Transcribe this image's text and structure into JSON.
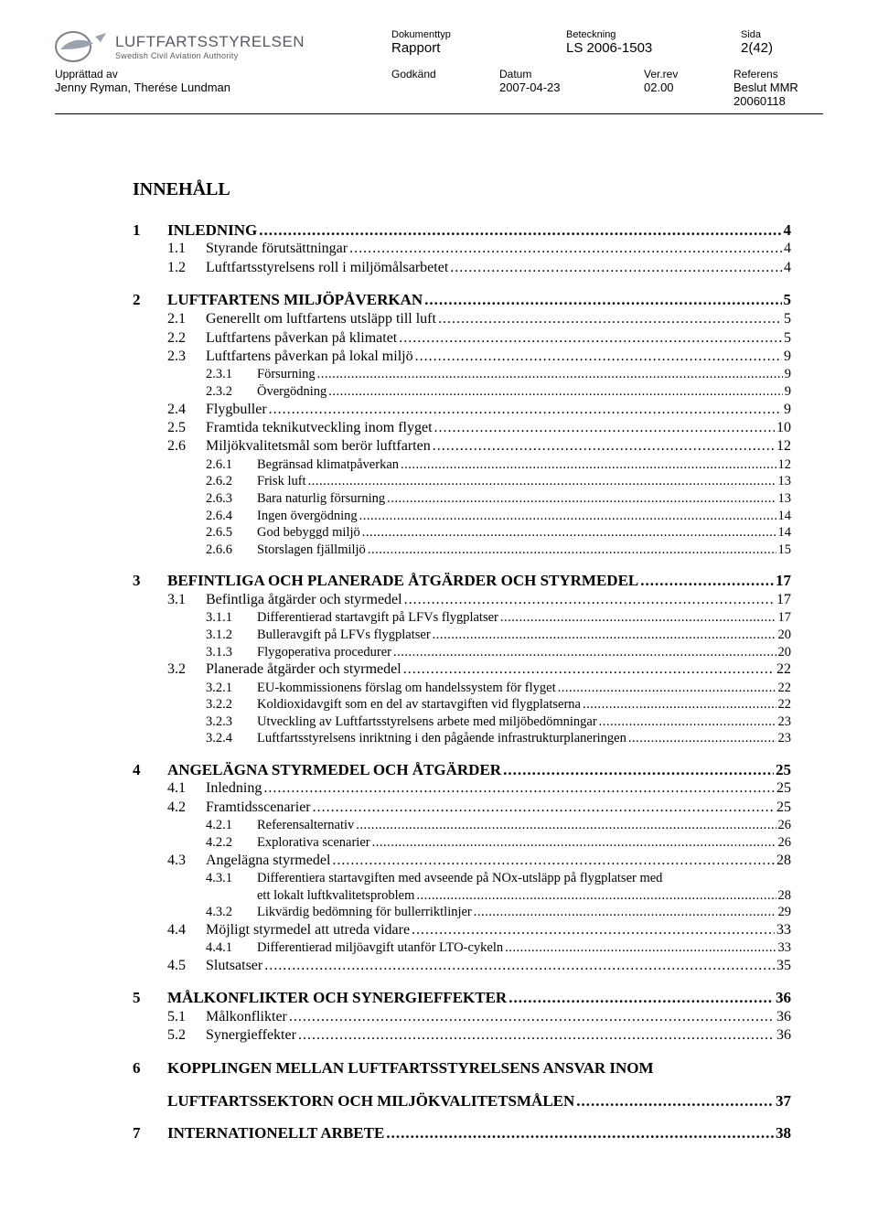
{
  "logo": {
    "name": "LUFTFARTSSTYRELSEN",
    "sub": "Swedish Civil Aviation Authority"
  },
  "header": {
    "doktyp_lbl": "Dokumenttyp",
    "doktyp_val": "Rapport",
    "beteckning_lbl": "Beteckning",
    "beteckning_val": "LS 2006-1503",
    "sida_lbl": "Sida",
    "sida_val": "2(42)",
    "upprattad_lbl": "Upprättad av",
    "upprattad_val": "Jenny Ryman, Therése Lundman",
    "godkand_lbl": "Godkänd",
    "datum_lbl": "Datum",
    "datum_val": "2007-04-23",
    "verrev_lbl": "Ver.rev",
    "verrev_val": "02.00",
    "referens_lbl": "Referens",
    "referens_val": "Beslut MMR 20060118"
  },
  "toc_heading": "INNEHÅLL",
  "toc": [
    {
      "level": 1,
      "num": "1",
      "title": "INLEDNING",
      "page": "4"
    },
    {
      "level": 2,
      "num": "1.1",
      "title": "Styrande förutsättningar",
      "page": "4"
    },
    {
      "level": 2,
      "num": "1.2",
      "title": "Luftfartsstyrelsens roll i miljömålsarbetet",
      "page": "4"
    },
    {
      "level": 1,
      "num": "2",
      "title": "LUFTFARTENS MILJÖPÅVERKAN",
      "page": "5"
    },
    {
      "level": 2,
      "num": "2.1",
      "title": "Generellt om luftfartens utsläpp till luft",
      "page": "5"
    },
    {
      "level": 2,
      "num": "2.2",
      "title": "Luftfartens påverkan på klimatet",
      "page": "5"
    },
    {
      "level": 2,
      "num": "2.3",
      "title": "Luftfartens påverkan på lokal miljö",
      "page": "9"
    },
    {
      "level": 3,
      "num": "2.3.1",
      "title": "Försurning",
      "page": "9"
    },
    {
      "level": 3,
      "num": "2.3.2",
      "title": "Övergödning",
      "page": "9"
    },
    {
      "level": 2,
      "num": "2.4",
      "title": "Flygbuller",
      "page": "9"
    },
    {
      "level": 2,
      "num": "2.5",
      "title": "Framtida teknikutveckling inom flyget",
      "page": "10"
    },
    {
      "level": 2,
      "num": "2.6",
      "title": "Miljökvalitetsmål som berör luftfarten",
      "page": "12"
    },
    {
      "level": 3,
      "num": "2.6.1",
      "title": "Begränsad klimatpåverkan",
      "page": "12"
    },
    {
      "level": 3,
      "num": "2.6.2",
      "title": "Frisk luft",
      "page": "13"
    },
    {
      "level": 3,
      "num": "2.6.3",
      "title": "Bara naturlig försurning",
      "page": "13"
    },
    {
      "level": 3,
      "num": "2.6.4",
      "title": "Ingen övergödning",
      "page": "14"
    },
    {
      "level": 3,
      "num": "2.6.5",
      "title": "God bebyggd miljö",
      "page": "14"
    },
    {
      "level": 3,
      "num": "2.6.6",
      "title": "Storslagen fjällmiljö",
      "page": "15"
    },
    {
      "level": 1,
      "num": "3",
      "title": "BEFINTLIGA OCH PLANERADE ÅTGÄRDER OCH STYRMEDEL",
      "page": "17"
    },
    {
      "level": 2,
      "num": "3.1",
      "title": "Befintliga åtgärder och styrmedel",
      "page": "17"
    },
    {
      "level": 3,
      "num": "3.1.1",
      "title": "Differentierad startavgift på LFVs flygplatser",
      "page": "17"
    },
    {
      "level": 3,
      "num": "3.1.2",
      "title": "Bulleravgift på LFVs flygplatser",
      "page": "20"
    },
    {
      "level": 3,
      "num": "3.1.3",
      "title": "Flygoperativa procedurer",
      "page": "20"
    },
    {
      "level": 2,
      "num": "3.2",
      "title": "Planerade åtgärder och styrmedel",
      "page": "22"
    },
    {
      "level": 3,
      "num": "3.2.1",
      "title": "EU-kommissionens förslag om handelssystem för flyget",
      "page": "22"
    },
    {
      "level": 3,
      "num": "3.2.2",
      "title": "Koldioxidavgift som en del av startavgiften vid flygplatserna",
      "page": "22"
    },
    {
      "level": 3,
      "num": "3.2.3",
      "title": "Utveckling av Luftfartsstyrelsens arbete med miljöbedömningar",
      "page": "23"
    },
    {
      "level": 3,
      "num": "3.2.4",
      "title": "Luftfartsstyrelsens inriktning i den pågående infrastrukturplaneringen",
      "page": "23"
    },
    {
      "level": 1,
      "num": "4",
      "title": "ANGELÄGNA STYRMEDEL OCH ÅTGÄRDER",
      "page": "25"
    },
    {
      "level": 2,
      "num": "4.1",
      "title": "Inledning",
      "page": "25"
    },
    {
      "level": 2,
      "num": "4.2",
      "title": "Framtidsscenarier",
      "page": "25"
    },
    {
      "level": 3,
      "num": "4.2.1",
      "title": "Referensalternativ",
      "page": "26"
    },
    {
      "level": 3,
      "num": "4.2.2",
      "title": "Explorativa scenarier",
      "page": "26"
    },
    {
      "level": 2,
      "num": "4.3",
      "title": "Angelägna styrmedel",
      "page": "28"
    },
    {
      "level": 3,
      "num": "4.3.1",
      "title": "Differentiera startavgiften med avseende på NOx-utsläpp på flygplatser med",
      "cont": "ett lokalt luftkvalitetsproblem",
      "page": "28"
    },
    {
      "level": 3,
      "num": "4.3.2",
      "title": "Likvärdig bedömning för bullerriktlinjer",
      "page": "29"
    },
    {
      "level": 2,
      "num": "4.4",
      "title": "Möjligt styrmedel att utreda vidare",
      "page": "33"
    },
    {
      "level": 3,
      "num": "4.4.1",
      "title": "Differentierad miljöavgift utanför LTO-cykeln",
      "page": "33"
    },
    {
      "level": 2,
      "num": "4.5",
      "title": "Slutsatser",
      "page": "35"
    },
    {
      "level": 1,
      "num": "5",
      "title": "MÅLKONFLIKTER OCH SYNERGIEFFEKTER",
      "page": "36"
    },
    {
      "level": 2,
      "num": "5.1",
      "title": "Målkonflikter",
      "page": "36"
    },
    {
      "level": 2,
      "num": "5.2",
      "title": "Synergieffekter",
      "page": "36"
    },
    {
      "level": 1,
      "num": "6",
      "title": "KOPPLINGEN MELLAN LUFTFARTSSTYRELSENS ANSVAR INOM",
      "cont": "LUFTFARTSSEKTORN OCH MILJÖKVALITETSMÅLEN",
      "page": "37"
    },
    {
      "level": 1,
      "num": "7",
      "title": "INTERNATIONELLT ARBETE",
      "page": "38"
    }
  ]
}
